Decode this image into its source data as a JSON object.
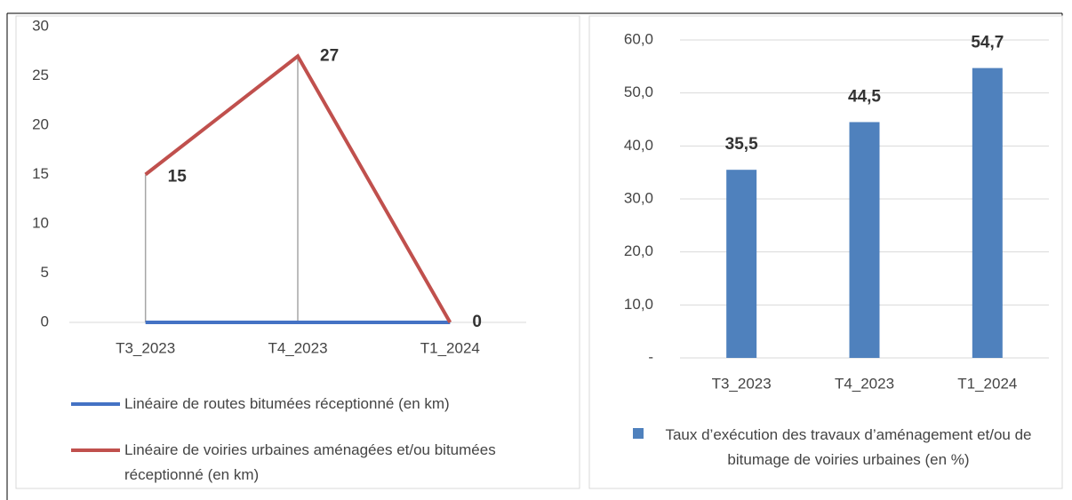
{
  "chart_data": [
    {
      "type": "line",
      "categories": [
        "T3_2023",
        "T4_2023",
        "T1_2024"
      ],
      "series": [
        {
          "name": "Linéaire de routes bitumées réceptionné (en km)",
          "color": "#4472c4",
          "values": [
            0,
            0,
            0
          ],
          "data_labels": false
        },
        {
          "name": "Linéaire de voiries urbaines aménagées et/ou bitumées réceptionné (en km)",
          "color": "#c0504d",
          "values": [
            15,
            27,
            0
          ],
          "data_labels": true
        }
      ],
      "ylim": [
        0,
        30
      ],
      "yticks": [
        0,
        5,
        10,
        15,
        20,
        25,
        30
      ],
      "grid": false,
      "drop_lines": true,
      "legend": "bottom"
    },
    {
      "type": "bar",
      "categories": [
        "T3_2023",
        "T4_2023",
        "T1_2024"
      ],
      "series": [
        {
          "name": "Taux d’exécution des travaux d’aménagement et/ou de bitumage de voiries urbaines (en %)",
          "color": "#4f81bd",
          "values": [
            35.5,
            44.5,
            54.7
          ],
          "value_labels": [
            "35,5",
            "44,5",
            "54,7"
          ],
          "data_labels": true
        }
      ],
      "ylim": [
        0,
        60
      ],
      "yticks": [
        {
          "value": 0,
          "label": "-"
        },
        {
          "value": 10,
          "label": "10,0"
        },
        {
          "value": 20,
          "label": "20,0"
        },
        {
          "value": 30,
          "label": "30,0"
        },
        {
          "value": 40,
          "label": "40,0"
        },
        {
          "value": 50,
          "label": "50,0"
        },
        {
          "value": 60,
          "label": "60,0"
        }
      ],
      "grid": true,
      "legend": "bottom"
    }
  ]
}
